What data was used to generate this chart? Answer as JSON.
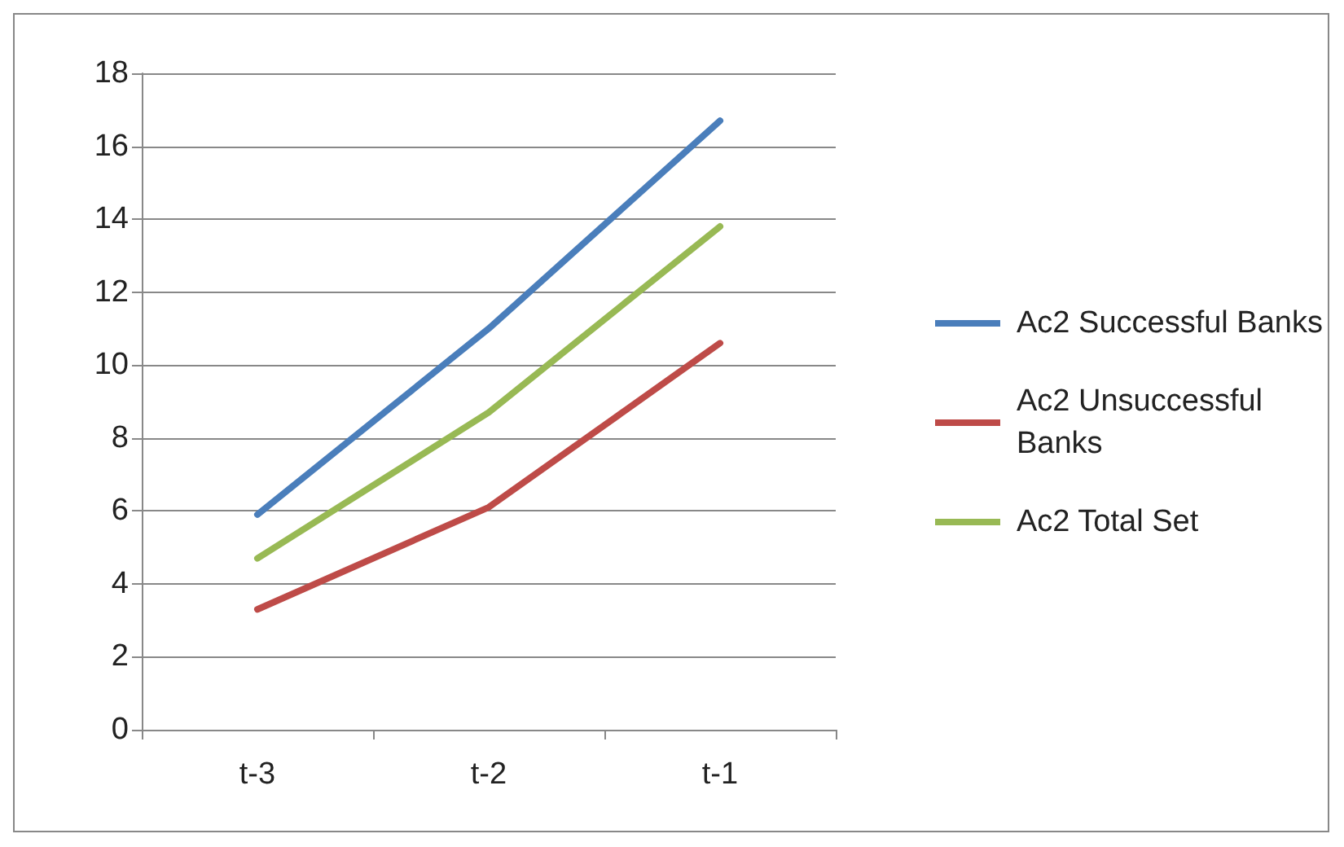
{
  "chart_data": {
    "type": "line",
    "categories": [
      "t-3",
      "t-2",
      "t-1"
    ],
    "series": [
      {
        "name": "Ac2 Successful Banks",
        "color": "#4a7ebb",
        "values": [
          5.9,
          11.0,
          16.7
        ]
      },
      {
        "name": "Ac2 Unsuccessful Banks",
        "color": "#be4b48",
        "values": [
          3.3,
          6.1,
          10.6
        ]
      },
      {
        "name": "Ac2 Total Set",
        "color": "#98b954",
        "values": [
          4.7,
          8.7,
          13.8
        ]
      }
    ],
    "ylim": [
      0,
      18
    ],
    "yticks": [
      0,
      2,
      4,
      6,
      8,
      10,
      12,
      14,
      16,
      18
    ],
    "grid": "y",
    "legend": "right",
    "marker": "none",
    "line_style": "solid"
  }
}
